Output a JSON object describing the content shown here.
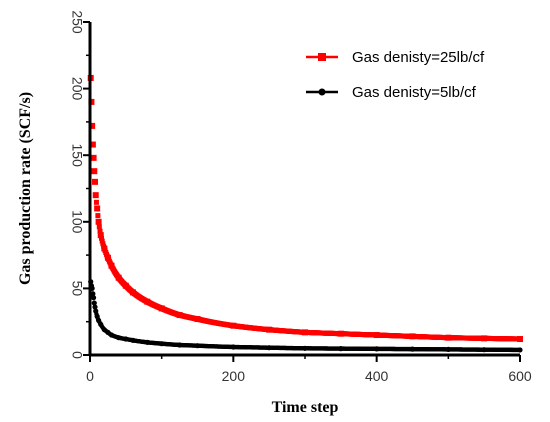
{
  "chart_data": {
    "type": "scatter",
    "title": "",
    "xlabel": "Time step",
    "ylabel": "Gas production rate (SCF/s)",
    "xlim": [
      0,
      600
    ],
    "ylim": [
      0,
      250
    ],
    "xticks": [
      0,
      200,
      400,
      600
    ],
    "yticks": [
      0,
      50,
      100,
      150,
      200,
      250
    ],
    "legend_position": "top-right",
    "grid": false,
    "series": [
      {
        "name": "Gas denisty=25lb/cf",
        "color": "#ff0000",
        "marker": "square",
        "x": [
          1,
          2,
          3,
          4,
          5,
          6,
          7,
          8,
          10,
          12,
          15,
          20,
          25,
          30,
          40,
          50,
          60,
          80,
          100,
          125,
          150,
          200,
          250,
          300,
          350,
          400,
          450,
          500,
          550,
          600
        ],
        "y": [
          208,
          190,
          172,
          158,
          148,
          138,
          130,
          120,
          110,
          100,
          90,
          80,
          73,
          67,
          58,
          52,
          47,
          40,
          35,
          30,
          27,
          22,
          19,
          17,
          16,
          15,
          14,
          13,
          12.5,
          12
        ]
      },
      {
        "name": "Gas denisty=5lb/cf",
        "color": "#000000",
        "marker": "circle",
        "x": [
          1,
          2,
          3,
          4,
          5,
          6,
          7,
          8,
          10,
          12,
          15,
          20,
          25,
          30,
          40,
          50,
          60,
          80,
          100,
          125,
          150,
          200,
          250,
          300,
          350,
          400,
          450,
          500,
          550,
          600
        ],
        "y": [
          55,
          52,
          50,
          46,
          43,
          39,
          36,
          33,
          29,
          26,
          23,
          19,
          17,
          15,
          13,
          12,
          11,
          9.5,
          8.5,
          7.5,
          7,
          6,
          5.5,
          5,
          4.8,
          4.6,
          4.4,
          4.2,
          4.0,
          3.8
        ]
      }
    ]
  }
}
